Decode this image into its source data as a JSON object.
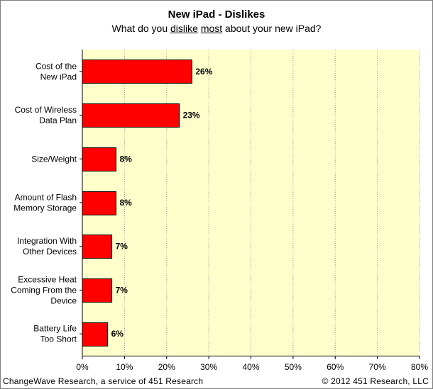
{
  "chart_data": {
    "type": "bar",
    "orientation": "horizontal",
    "title": "New iPad - Dislikes",
    "subtitle": {
      "prefix": "What do you ",
      "emph1": "dislike",
      "mid": " ",
      "emph2": "most",
      "suffix": " about your new iPad?"
    },
    "categories": [
      [
        "Cost of the",
        "New iPad"
      ],
      [
        "Cost of Wireless",
        "Data Plan"
      ],
      [
        "Size/Weight"
      ],
      [
        "Amount of Flash",
        "Memory Storage"
      ],
      [
        "Integration With",
        "Other Devices"
      ],
      [
        "Excessive Heat",
        "Coming From the",
        "Device"
      ],
      [
        "Battery Life",
        "Too Short"
      ]
    ],
    "values": [
      26,
      23,
      8,
      8,
      7,
      7,
      6
    ],
    "value_labels": [
      "26%",
      "23%",
      "8%",
      "8%",
      "7%",
      "7%",
      "6%"
    ],
    "xlim": [
      0,
      80
    ],
    "x_ticks": [
      0,
      10,
      20,
      30,
      40,
      50,
      60,
      70,
      80
    ],
    "x_tick_labels": [
      "0%",
      "10%",
      "20%",
      "30%",
      "40%",
      "50%",
      "60%",
      "70%",
      "80%"
    ],
    "gridlines": true,
    "legend": "none",
    "colors": {
      "bar_fill": "#ff0000",
      "bar_stroke": "#000000",
      "plot_background": "#ffffcc",
      "gridline": "#9a9a9a"
    }
  },
  "footer": {
    "left": "ChangeWave Research, a service of 451 Research",
    "right": "© 2012 451 Research, LLC"
  }
}
